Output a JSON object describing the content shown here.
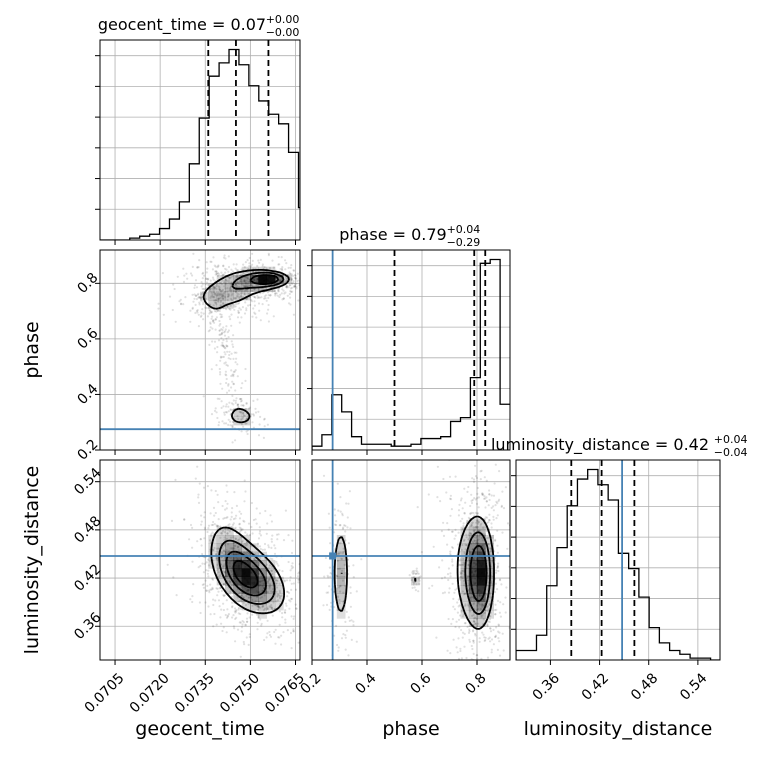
{
  "chart_data": {
    "type": "corner",
    "parameters": [
      {
        "name": "geocent_time",
        "axis_label": "geocent_time",
        "title_main": "geocent_time = 0.07",
        "title_sup": "+0.00",
        "title_sub": "−0.00",
        "range": [
          0.07,
          0.07665
        ],
        "ticks": [
          0.0705,
          0.072,
          0.0735,
          0.075,
          0.0765
        ],
        "tick_labels": [
          "0.0705",
          "0.0720",
          "0.0735",
          "0.0750",
          "0.0765"
        ],
        "hist_edges_start": 0.07,
        "hist_bin_width": 0.00033,
        "hist_counts": [
          0.0,
          0.0,
          0.0,
          0.01,
          0.02,
          0.03,
          0.06,
          0.11,
          0.2,
          0.4,
          0.64,
          0.86,
          0.93,
          1.0,
          0.92,
          0.81,
          0.73,
          0.66,
          0.61,
          0.46,
          0.17
        ],
        "quantiles": [
          0.0736,
          0.07452,
          0.0756
        ],
        "truth": null
      },
      {
        "name": "phase",
        "axis_label": "phase",
        "title_main": "phase = 0.79",
        "title_sup": "+0.04",
        "title_sub": "−0.29",
        "range": [
          0.2,
          0.92
        ],
        "ticks": [
          0.2,
          0.4,
          0.6,
          0.8
        ],
        "tick_labels": [
          "0.2",
          "0.4",
          "0.6",
          "0.8"
        ],
        "hist_edges_start": 0.2,
        "hist_bin_width": 0.036,
        "hist_counts": [
          0.02,
          0.08,
          0.29,
          0.2,
          0.07,
          0.03,
          0.03,
          0.03,
          0.02,
          0.02,
          0.03,
          0.06,
          0.06,
          0.07,
          0.15,
          0.17,
          0.38,
          0.98,
          1.0,
          0.24
        ],
        "quantiles": [
          0.5,
          0.79,
          0.83
        ],
        "truth": 0.275
      },
      {
        "name": "luminosity_distance",
        "axis_label": "luminosity_distance",
        "title_main": "luminosity_distance = 0.42",
        "title_sup": "+0.04",
        "title_sub": "−0.04",
        "range": [
          0.318,
          0.567
        ],
        "ticks": [
          0.36,
          0.42,
          0.48,
          0.54
        ],
        "tick_labels": [
          "0.36",
          "0.42",
          "0.48",
          "0.54"
        ],
        "hist_edges_start": 0.318,
        "hist_bin_width": 0.0125,
        "hist_counts": [
          0.05,
          0.05,
          0.13,
          0.39,
          0.59,
          0.81,
          0.95,
          1.0,
          0.92,
          0.84,
          0.56,
          0.48,
          0.33,
          0.17,
          0.09,
          0.05,
          0.03,
          0.01,
          0.01,
          0.0
        ],
        "quantiles": [
          0.3855,
          0.4225,
          0.4625
        ],
        "truth": 0.4475
      }
    ],
    "pairs": [
      {
        "x": "geocent_time",
        "y": "phase",
        "y_range": [
          0.2,
          0.92
        ],
        "y_ticks": [
          0.2,
          0.4,
          0.6,
          0.8
        ],
        "y_tick_labels": [
          "0.2",
          "0.4",
          "0.6",
          "0.8"
        ],
        "truth_y": 0.275,
        "peaks": [
          {
            "x": 0.0756,
            "y": 0.815,
            "sx": 0.00034,
            "sy": 0.013,
            "w": 1.0
          },
          {
            "x": 0.07515,
            "y": 0.81,
            "sx": 0.00055,
            "sy": 0.024,
            "w": 0.55
          },
          {
            "x": 0.0743,
            "y": 0.77,
            "sx": 0.00055,
            "sy": 0.034,
            "w": 0.35
          },
          {
            "x": 0.0738,
            "y": 0.745,
            "sx": 0.0003,
            "sy": 0.022,
            "w": 0.2
          },
          {
            "x": 0.0747,
            "y": 0.32,
            "sx": 0.00028,
            "sy": 0.02,
            "w": 0.3
          }
        ],
        "bridge": {
          "x_start": 0.0738,
          "y_start": 0.72,
          "x_end": 0.0746,
          "y_end": 0.34,
          "w": 0.05
        },
        "contour_levels": [
          0.14,
          0.32,
          0.58
        ]
      },
      {
        "x": "geocent_time",
        "y": "luminosity_distance",
        "y_range": [
          0.318,
          0.567
        ],
        "y_ticks": [
          0.36,
          0.42,
          0.48,
          0.54
        ],
        "y_tick_labels": [
          "0.36",
          "0.42",
          "0.48",
          "0.54"
        ],
        "truth_y": 0.4475,
        "peaks": [
          {
            "x": 0.075,
            "y": 0.42,
            "sx": 0.00058,
            "sy": 0.022,
            "w": 1.0,
            "rho": -0.45
          },
          {
            "x": 0.0745,
            "y": 0.44,
            "sx": 0.00045,
            "sy": 0.028,
            "w": 0.45,
            "rho": -0.5
          }
        ],
        "contour_levels": [
          0.12,
          0.3,
          0.55,
          0.8
        ]
      },
      {
        "x": "phase",
        "y": "luminosity_distance",
        "y_range": [
          0.318,
          0.567
        ],
        "y_ticks": [
          0.36,
          0.42,
          0.48,
          0.54
        ],
        "y_tick_labels": [
          "0.36",
          "0.42",
          "0.48",
          "0.54"
        ],
        "truth_x": 0.275,
        "truth_y": 0.4475,
        "peaks": [
          {
            "x": 0.81,
            "y": 0.425,
            "sx": 0.025,
            "sy": 0.032,
            "w": 1.0
          },
          {
            "x": 0.78,
            "y": 0.43,
            "sx": 0.04,
            "sy": 0.042,
            "w": 0.35
          },
          {
            "x": 0.305,
            "y": 0.425,
            "sx": 0.016,
            "sy": 0.034,
            "w": 0.42
          },
          {
            "x": 0.575,
            "y": 0.418,
            "sx": 0.007,
            "sy": 0.005,
            "w": 0.18
          }
        ],
        "contour_levels": [
          0.13,
          0.33,
          0.6
        ]
      }
    ]
  }
}
